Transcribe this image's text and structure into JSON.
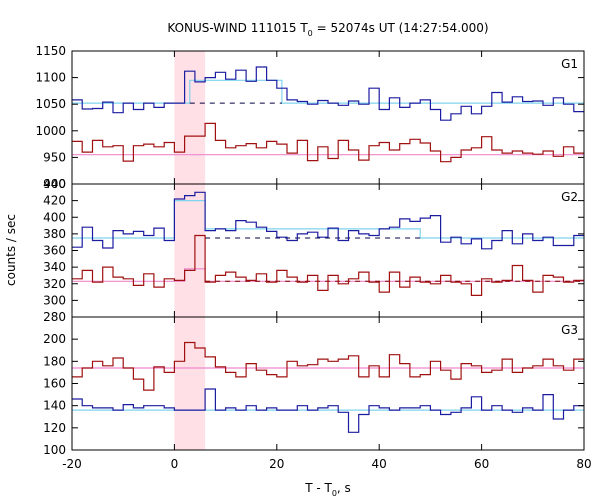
{
  "chart_data": {
    "type": "line",
    "title_main": "KONUS-WIND 111015 T",
    "title_sub": "0",
    "title_rest": " = 52074s UT (14:27:54.000)",
    "xlabel_main": "T - T",
    "xlabel_sub": "0",
    "xlabel_rest": ", s",
    "ylabel": "counts / sec",
    "xlim": [
      -20,
      80
    ],
    "x_ticks": [
      -20,
      0,
      20,
      40,
      60,
      80
    ],
    "highlight_x": [
      0,
      6
    ],
    "colors": {
      "blue": "#1c1ca0",
      "red": "#a01010",
      "cyan": "#7fd4ee",
      "pink": "#ee88cc",
      "dashed": "#000040",
      "dashed_red": "#800000",
      "highlight": "#ffe0e6"
    },
    "bin_edges": [
      -20,
      -18,
      -16,
      -14,
      -12,
      -10,
      -8,
      -6,
      -4,
      -2,
      0,
      2,
      4,
      6,
      8,
      10,
      12,
      14,
      16,
      18,
      20,
      22,
      24,
      26,
      28,
      30,
      32,
      34,
      36,
      38,
      40,
      42,
      44,
      46,
      48,
      50,
      52,
      54,
      56,
      58,
      60,
      62,
      64,
      66,
      68,
      70,
      72,
      74,
      76,
      78,
      80
    ],
    "panels": [
      {
        "label": "G1",
        "ylim": [
          900,
          1150
        ],
        "y_ticks": [
          900,
          950,
          1000,
          1050,
          1100,
          1150
        ],
        "series": [
          {
            "color": "blue",
            "values": [
              1058,
              1041,
              1042,
              1054,
              1034,
              1052,
              1040,
              1052,
              1044,
              1052,
              1052,
              1112,
              1092,
              1100,
              1110,
              1097,
              1114,
              1093,
              1120,
              1095,
              1080,
              1058,
              1055,
              1050,
              1057,
              1052,
              1048,
              1056,
              1050,
              1080,
              1040,
              1062,
              1044,
              1052,
              1058,
              1040,
              1020,
              1032,
              1046,
              1032,
              1046,
              1072,
              1054,
              1064,
              1055,
              1056,
              1048,
              1062,
              1050,
              1036
            ]
          },
          {
            "color": "red",
            "values": [
              980,
              960,
              982,
              970,
              972,
              943,
              972,
              975,
              970,
              978,
              960,
              990,
              990,
              1014,
              982,
              968,
              972,
              976,
              968,
              980,
              975,
              958,
              982,
              944,
              970,
              948,
              982,
              964,
              945,
              972,
              978,
              964,
              976,
              984,
              977,
              962,
              942,
              950,
              964,
              968,
              989,
              964,
              958,
              962,
              958,
              956,
              962,
              952,
              970,
              958
            ]
          }
        ],
        "fit": [
          {
            "color": "cyan",
            "points": [
              [
                -20,
                1052
              ],
              [
                3,
                1052
              ],
              [
                3,
                1095
              ],
              [
                21,
                1095
              ],
              [
                21,
                1052
              ],
              [
                80,
                1052
              ]
            ]
          },
          {
            "color": "pink",
            "points": [
              [
                -20,
                955
              ],
              [
                80,
                955
              ]
            ]
          }
        ],
        "dashed": [
          {
            "color": "dashed",
            "points": [
              [
                3,
                1052
              ],
              [
                21,
                1052
              ]
            ]
          }
        ]
      },
      {
        "label": "G2",
        "ylim": [
          280,
          440
        ],
        "y_ticks": [
          280,
          300,
          320,
          340,
          360,
          380,
          400,
          420,
          440
        ],
        "series": [
          {
            "color": "blue",
            "values": [
              364,
              388,
              372,
              363,
              384,
              380,
              383,
              378,
              387,
              372,
              422,
              426,
              430,
              384,
              386,
              384,
              396,
              394,
              388,
              383,
              376,
              372,
              380,
              382,
              376,
              387,
              372,
              384,
              380,
              378,
              386,
              388,
              398,
              395,
              399,
              402,
              370,
              376,
              368,
              374,
              362,
              372,
              384,
              368,
              380,
              372,
              376,
              366,
              366,
              378
            ]
          },
          {
            "color": "red",
            "values": [
              326,
              336,
              322,
              340,
              328,
              326,
              318,
              332,
              316,
              326,
              324,
              336,
              378,
              322,
              330,
              334,
              328,
              324,
              332,
              322,
              336,
              328,
              322,
              330,
              312,
              330,
              320,
              326,
              334,
              322,
              310,
              334,
              316,
              328,
              322,
              320,
              330,
              322,
              320,
              306,
              326,
              322,
              324,
              342,
              324,
              310,
              330,
              328,
              322,
              324
            ]
          }
        ],
        "fit": [
          {
            "color": "cyan",
            "points": [
              [
                -20,
                375
              ],
              [
                0,
                375
              ],
              [
                0,
                420
              ],
              [
                6,
                420
              ],
              [
                6,
                386
              ],
              [
                48,
                386
              ],
              [
                48,
                375
              ],
              [
                80,
                375
              ]
            ]
          },
          {
            "color": "pink",
            "points": [
              [
                -20,
                323
              ],
              [
                2,
                323
              ],
              [
                2,
                338
              ],
              [
                6,
                338
              ],
              [
                6,
                323
              ],
              [
                80,
                323
              ]
            ]
          }
        ],
        "dashed": [
          {
            "color": "dashed",
            "points": [
              [
                6,
                375
              ],
              [
                48,
                375
              ]
            ]
          },
          {
            "color": "dashed_red",
            "points": [
              [
                6,
                323
              ],
              [
                80,
                323
              ]
            ]
          }
        ]
      },
      {
        "label": "G3",
        "ylim": [
          100,
          220
        ],
        "y_ticks": [
          100,
          120,
          140,
          160,
          180,
          200
        ],
        "series": [
          {
            "color": "blue",
            "values": [
              146,
              140,
              138,
              138,
              136,
              141,
              138,
              140,
              140,
              138,
              136,
              136,
              136,
              155,
              136,
              138,
              136,
              140,
              136,
              138,
              136,
              136,
              140,
              136,
              138,
              140,
              134,
              116,
              132,
              140,
              138,
              136,
              138,
              138,
              140,
              136,
              132,
              134,
              138,
              148,
              136,
              140,
              136,
              134,
              138,
              136,
              150,
              128,
              136,
              140
            ]
          },
          {
            "color": "red",
            "values": [
              166,
              174,
              180,
              176,
              183,
              174,
              164,
              154,
              175,
              170,
              180,
              197,
              192,
              184,
              175,
              170,
              166,
              178,
              172,
              168,
              166,
              180,
              176,
              177,
              182,
              180,
              182,
              185,
              166,
              176,
              166,
              186,
              178,
              166,
              168,
              180,
              172,
              164,
              178,
              176,
              170,
              172,
              182,
              170,
              174,
              176,
              182,
              176,
              172,
              182
            ]
          }
        ],
        "fit": [
          {
            "color": "cyan",
            "points": [
              [
                -20,
                136
              ],
              [
                80,
                136
              ]
            ]
          },
          {
            "color": "pink",
            "points": [
              [
                -20,
                174
              ],
              [
                80,
                174
              ]
            ]
          }
        ],
        "dashed": []
      }
    ]
  }
}
